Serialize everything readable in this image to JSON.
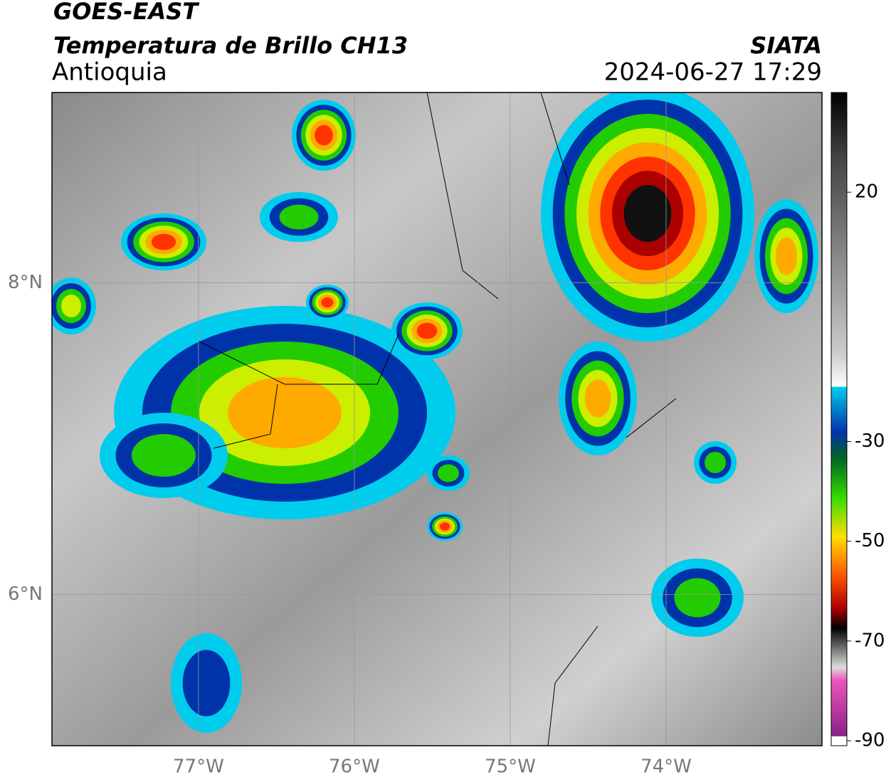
{
  "header": {
    "title": "GOES-EAST",
    "subtitle": "Temperatura de Brillo CH13",
    "region": "Antioquia",
    "source": "SIATA",
    "datetime": "2024-06-27 17:29"
  },
  "map": {
    "xlim": [
      -77.94,
      -73.0
    ],
    "ylim": [
      5.03,
      9.22
    ],
    "xticks": [
      {
        "value": -77,
        "label": "77°W"
      },
      {
        "value": -76,
        "label": "76°W"
      },
      {
        "value": -75,
        "label": "75°W"
      },
      {
        "value": -74,
        "label": "74°W"
      }
    ],
    "yticks": [
      {
        "value": 8,
        "label": "8°N"
      },
      {
        "value": 6,
        "label": "6°N"
      }
    ]
  },
  "colorbar": {
    "lim": [
      -91,
      40
    ],
    "ticks": [
      20,
      -30,
      -50,
      -70,
      -90
    ]
  }
}
